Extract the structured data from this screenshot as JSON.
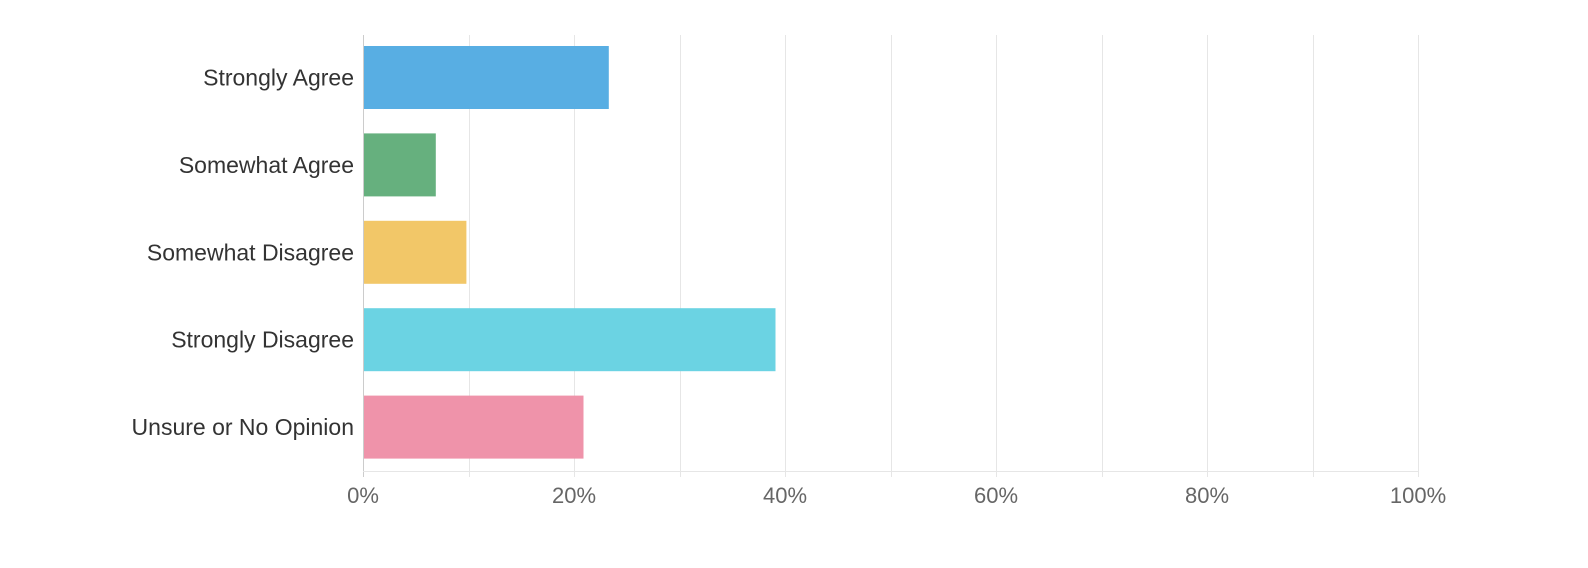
{
  "chart_data": {
    "type": "bar",
    "orientation": "horizontal",
    "categories": [
      "Strongly Agree",
      "Somewhat Agree",
      "Somewhat Disagree",
      "Strongly Disagree",
      "Unsure or No Opinion"
    ],
    "values": [
      23.3,
      6.9,
      9.8,
      39.1,
      20.9
    ],
    "colors": [
      "#58aee3",
      "#66b07e",
      "#f2c768",
      "#6bd3e3",
      "#ef93aa"
    ],
    "xlim": [
      0,
      100
    ],
    "x_ticks": [
      0,
      20,
      40,
      60,
      80,
      100
    ],
    "x_tick_labels": [
      "0%",
      "20%",
      "40%",
      "60%",
      "80%",
      "100%"
    ],
    "grid": true,
    "title": "",
    "xlabel": "",
    "ylabel": "",
    "legend": "none"
  }
}
